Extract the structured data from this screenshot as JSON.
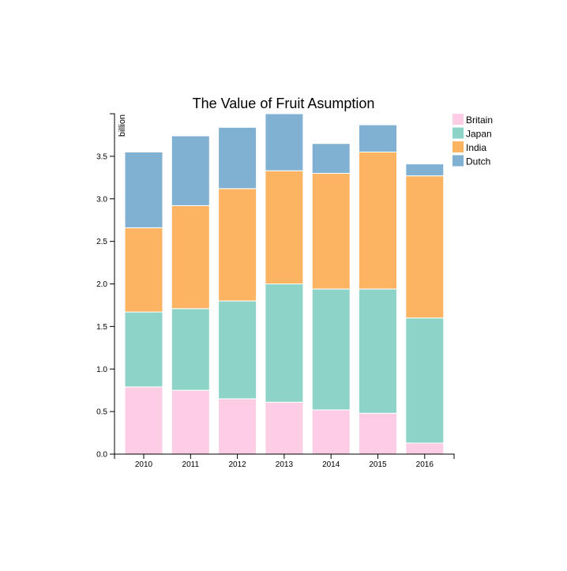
{
  "chart_data": {
    "type": "bar",
    "stacked": true,
    "title": "The Value of Fruit Asumption",
    "xlabel": "",
    "ylabel": "billion",
    "categories": [
      "2010",
      "2011",
      "2012",
      "2013",
      "2014",
      "2015",
      "2016"
    ],
    "ylim": [
      0,
      4.0
    ],
    "yticks": [
      0.0,
      0.5,
      1.0,
      1.5,
      2.0,
      2.5,
      3.0,
      3.5
    ],
    "ytick_labels": [
      "0.0",
      "0.5",
      "1.0",
      "1.5",
      "2.0",
      "2.5",
      "3.0",
      "3.5"
    ],
    "series": [
      {
        "name": "Britain",
        "color": "#fdcde6",
        "values": [
          0.79,
          0.75,
          0.65,
          0.61,
          0.52,
          0.48,
          0.13
        ]
      },
      {
        "name": "Japan",
        "color": "#8dd3c7",
        "values": [
          0.88,
          0.96,
          1.15,
          1.39,
          1.42,
          1.46,
          1.47
        ]
      },
      {
        "name": "India",
        "color": "#fdb462",
        "values": [
          0.99,
          1.21,
          1.32,
          1.33,
          1.36,
          1.61,
          1.67
        ]
      },
      {
        "name": "Dutch",
        "color": "#80b1d3",
        "values": [
          0.89,
          0.82,
          0.72,
          0.67,
          0.35,
          0.32,
          0.14
        ]
      }
    ],
    "legend_position": "top-right",
    "grid": false
  }
}
